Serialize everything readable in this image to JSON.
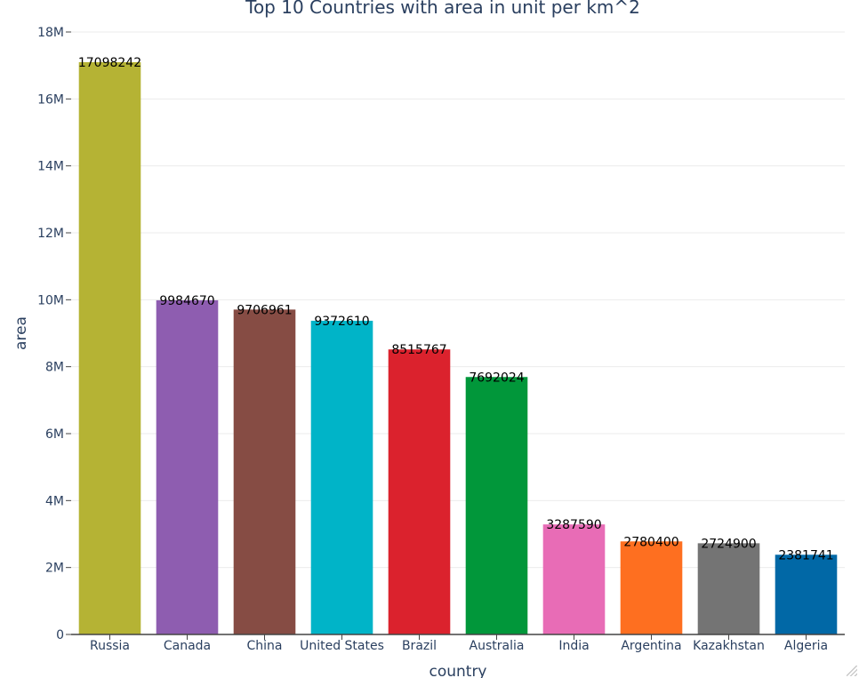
{
  "chart_data": {
    "type": "bar",
    "title": "Top 10 Countries with area in unit per km^2",
    "xlabel": "country",
    "ylabel": "area",
    "categories": [
      "Russia",
      "Canada",
      "China",
      "United States",
      "Brazil",
      "Australia",
      "India",
      "Argentina",
      "Kazakhstan",
      "Algeria"
    ],
    "values": [
      17098242,
      9984670,
      9706961,
      9372610,
      8515767,
      7692024,
      3287590,
      2780400,
      2724900,
      2381741
    ],
    "data_labels": [
      "17098242",
      "9984670",
      "9706961",
      "9372610",
      "8515767",
      "7692024",
      "3287590",
      "2780400",
      "2724900",
      "2381741"
    ],
    "colors": [
      "#b5b334",
      "#8e5db0",
      "#864c44",
      "#00b4c8",
      "#db222d",
      "#01973a",
      "#e86cb6",
      "#fe6f20",
      "#747474",
      "#0168a6"
    ],
    "ylim": [
      0,
      18000000
    ],
    "yticks": [
      0,
      2000000,
      4000000,
      6000000,
      8000000,
      10000000,
      12000000,
      14000000,
      16000000,
      18000000
    ],
    "ytick_labels": [
      "0",
      "2M",
      "4M",
      "6M",
      "8M",
      "10M",
      "12M",
      "14M",
      "16M",
      "18M"
    ],
    "grid": true
  }
}
